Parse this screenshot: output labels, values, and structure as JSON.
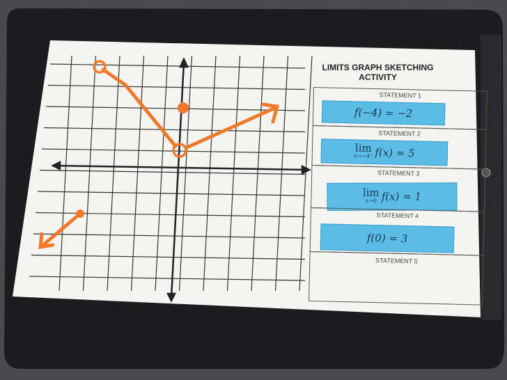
{
  "worksheet": {
    "title_line1": "LIMITS GRAPH SKETCHING",
    "title_line2": "ACTIVITY",
    "statements": [
      {
        "label": "STATEMENT 1",
        "expr": "f(−4) = −2"
      },
      {
        "label": "STATEMENT 2",
        "lim": "lim",
        "sub": "x→−4⁺",
        "expr": "f(x) = 5"
      },
      {
        "label": "STATEMENT 3",
        "lim": "lim",
        "sub": "x→0",
        "expr": "f(x) = 1"
      },
      {
        "label": "STATEMENT 4",
        "expr": "f(0) = 3"
      },
      {
        "label": "STATEMENT 5"
      }
    ]
  },
  "colors": {
    "card": "#5bbde6",
    "sketch": "#f07a2a",
    "clipboard": "#1c1c1e",
    "paper": "#f4f4f2"
  }
}
